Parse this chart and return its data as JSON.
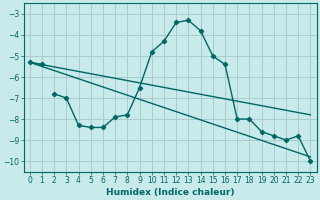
{
  "xlabel": "Humidex (Indice chaleur)",
  "background_color": "#c8eaea",
  "grid_color": "#aacccc",
  "line_color": "#006666",
  "xlim": [
    -0.5,
    23.5
  ],
  "ylim": [
    -10.5,
    -2.5
  ],
  "yticks": [
    -10,
    -9,
    -8,
    -7,
    -6,
    -5,
    -4,
    -3
  ],
  "xticks": [
    0,
    1,
    2,
    3,
    4,
    5,
    6,
    7,
    8,
    9,
    10,
    11,
    12,
    13,
    14,
    15,
    16,
    17,
    18,
    19,
    20,
    21,
    22,
    23
  ],
  "lines": [
    {
      "x": [
        0,
        1
      ],
      "y": [
        -5.3,
        -5.4
      ],
      "markers": true
    },
    {
      "x": [
        2,
        3,
        4,
        5,
        6,
        7,
        8,
        9,
        10,
        11,
        12,
        13,
        14,
        15,
        16,
        17,
        18,
        19,
        20,
        21,
        22,
        23
      ],
      "y": [
        -6.8,
        -7.0,
        -8.3,
        -8.4,
        -8.4,
        -7.9,
        -7.8,
        -6.5,
        -4.8,
        -4.3,
        -3.4,
        -3.3,
        -3.8,
        -5.0,
        -5.4,
        -8.0,
        -8.0,
        -8.6,
        -8.8,
        -9.0,
        -8.8,
        -10.0
      ],
      "markers": true
    },
    {
      "x": [
        0,
        23
      ],
      "y": [
        -5.3,
        -7.8
      ],
      "markers": false
    },
    {
      "x": [
        0,
        23
      ],
      "y": [
        -5.3,
        -9.8
      ],
      "markers": false
    }
  ]
}
